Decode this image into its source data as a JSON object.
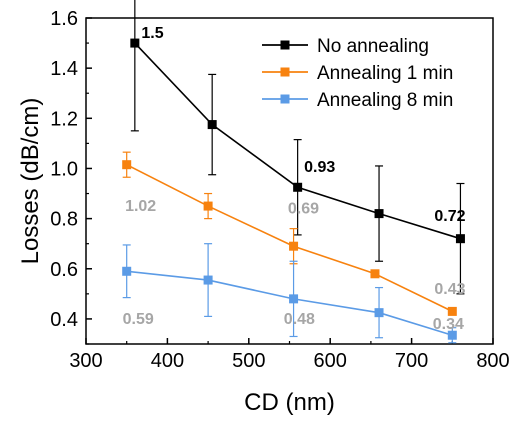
{
  "chart_data": {
    "type": "line",
    "xlabel": "CD (nm)",
    "ylabel": "Losses (dB/cm)",
    "xlim": [
      300,
      800
    ],
    "ylim": [
      0.3,
      1.6
    ],
    "xticks": [
      300,
      400,
      500,
      600,
      700,
      800
    ],
    "yticks": [
      0.4,
      0.6,
      0.8,
      1.0,
      1.2,
      1.4,
      1.6
    ],
    "xtick_labels": [
      "300",
      "400",
      "500",
      "600",
      "700",
      "800"
    ],
    "ytick_labels": [
      "0.4",
      "0.6",
      "0.8",
      "1.0",
      "1.2",
      "1.4",
      "1.6"
    ],
    "legend_position": "top-right",
    "series": [
      {
        "name": "No annealing",
        "color": "#000000",
        "x": [
          360,
          455,
          560,
          660,
          760
        ],
        "y": [
          1.5,
          1.175,
          0.925,
          0.82,
          0.72
        ],
        "err": [
          0.35,
          0.2,
          0.19,
          0.19,
          0.22
        ]
      },
      {
        "name": "Annealing 1 min",
        "color": "#f7820f",
        "x": [
          350,
          450,
          555,
          655,
          750
        ],
        "y": [
          1.015,
          0.85,
          0.69,
          0.58,
          0.43
        ],
        "err": [
          0.05,
          0.05,
          0.07,
          0.0,
          0.0
        ]
      },
      {
        "name": "Annealing 8 min",
        "color": "#5b9be6",
        "x": [
          350,
          450,
          555,
          660,
          750
        ],
        "y": [
          0.59,
          0.555,
          0.48,
          0.425,
          0.335
        ],
        "err": [
          0.105,
          0.145,
          0.15,
          0.1,
          0.03
        ]
      }
    ],
    "annotations": [
      {
        "text": "1.5",
        "x": 368,
        "y": 1.52,
        "color": "#000000"
      },
      {
        "text": "0.93",
        "x": 568,
        "y": 0.985,
        "color": "#000000"
      },
      {
        "text": "0.72",
        "x": 728,
        "y": 0.79,
        "color": "#000000"
      },
      {
        "text": "1.02",
        "x": 348,
        "y": 0.83,
        "color": "#a6a6a6"
      },
      {
        "text": "0.69",
        "x": 548,
        "y": 0.82,
        "color": "#a6a6a6"
      },
      {
        "text": "0.43",
        "x": 728,
        "y": 0.5,
        "color": "#a6a6a6"
      },
      {
        "text": "0.59",
        "x": 345,
        "y": 0.38,
        "color": "#a6a6a6"
      },
      {
        "text": "0.48",
        "x": 543,
        "y": 0.38,
        "color": "#a6a6a6"
      },
      {
        "text": "0.34",
        "x": 726,
        "y": 0.36,
        "color": "#a6a6a6"
      }
    ]
  }
}
